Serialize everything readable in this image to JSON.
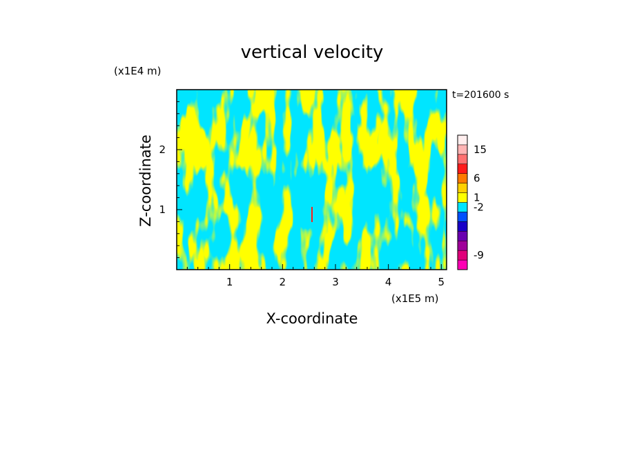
{
  "chart_data": {
    "type": "heatmap",
    "title": "vertical velocity",
    "xlabel": "X-coordinate",
    "ylabel": "Z-coordinate",
    "x_unit": "(x1E5 m)",
    "y_unit": "(x1E4 m)",
    "time_label": "t=201600 s",
    "xlim": [
      0,
      5.1
    ],
    "ylim": [
      0,
      3.0
    ],
    "x_ticks": [
      {
        "value": 1,
        "label": "1"
      },
      {
        "value": 2,
        "label": "2"
      },
      {
        "value": 3,
        "label": "3"
      },
      {
        "value": 4,
        "label": "4"
      },
      {
        "value": 5,
        "label": "5"
      }
    ],
    "y_ticks": [
      {
        "value": 1,
        "label": "1"
      },
      {
        "value": 2,
        "label": "2"
      }
    ],
    "dominant_colors": {
      "positive_small": "#ffff00",
      "negative_small": "#00e5ff"
    },
    "colorbar": {
      "levels": [
        {
          "color": "#ff00b4",
          "label": ""
        },
        {
          "color": "#e0007a",
          "label": "-9"
        },
        {
          "color": "#a0009a",
          "label": ""
        },
        {
          "color": "#6a00b0",
          "label": ""
        },
        {
          "color": "#1800c8",
          "label": ""
        },
        {
          "color": "#0050ff",
          "label": ""
        },
        {
          "color": "#00e5ff",
          "label": "-2"
        },
        {
          "color": "#ffff00",
          "label": "1"
        },
        {
          "color": "#ffd000",
          "label": ""
        },
        {
          "color": "#ff7a00",
          "label": "6"
        },
        {
          "color": "#ff1a1a",
          "label": ""
        },
        {
          "color": "#ff7070",
          "label": ""
        },
        {
          "color": "#ffb4b4",
          "label": "15"
        },
        {
          "color": "#ffeeee",
          "label": ""
        }
      ]
    }
  }
}
